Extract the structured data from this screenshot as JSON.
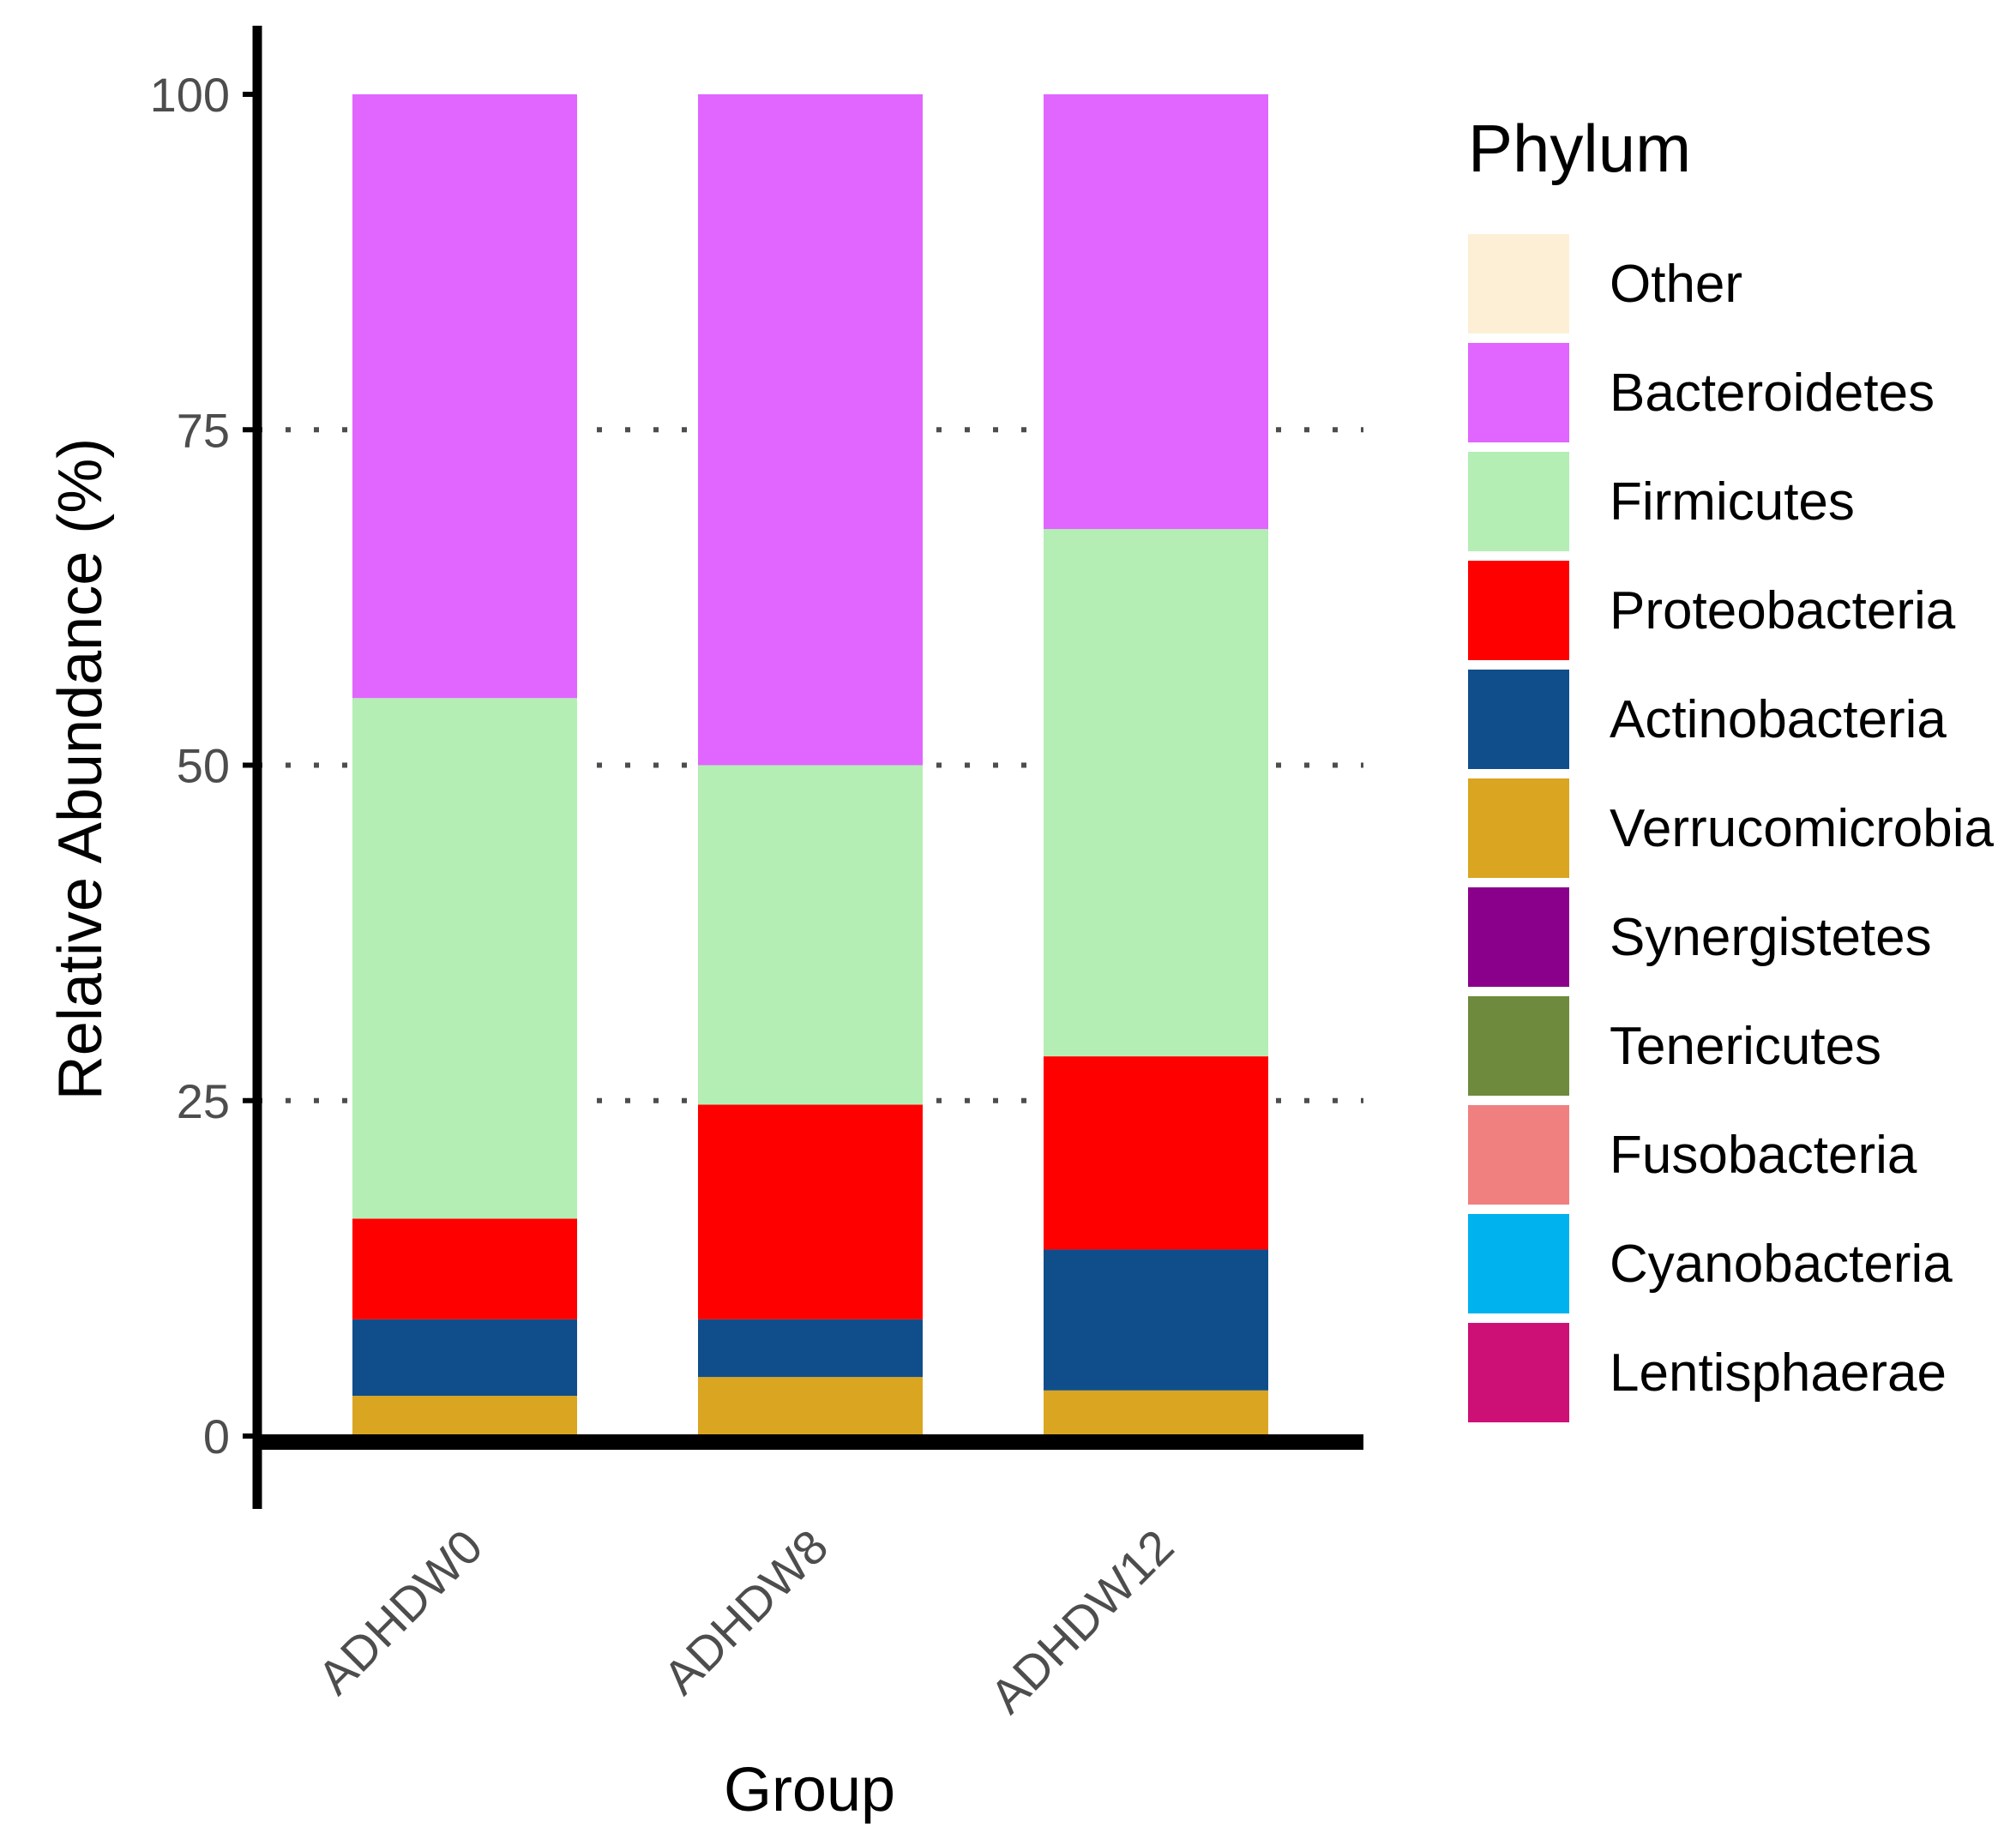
{
  "chart_data": {
    "type": "bar",
    "stacked": true,
    "title": "",
    "xlabel": "Group",
    "ylabel": "Relative Abundance (%)",
    "ylim": [
      0,
      100
    ],
    "yticks": [
      0,
      25,
      50,
      75,
      100
    ],
    "grid": "dotted horizontal at 25, 50, 75",
    "categories": [
      "ADHDW0",
      "ADHDW8",
      "ADHDW12"
    ],
    "legend": {
      "title": "Phylum",
      "position": "right"
    },
    "series": [
      {
        "name": "Other",
        "color": "#FDEFD6",
        "values": [
          0,
          0,
          0
        ]
      },
      {
        "name": "Bacteroidetes",
        "color": "#E066FF",
        "values": [
          45.0,
          50.0,
          32.4
        ]
      },
      {
        "name": "Firmicutes",
        "color": "#B4EEB4",
        "values": [
          38.8,
          25.3,
          39.3
        ]
      },
      {
        "name": "Proteobacteria",
        "color": "#FF0000",
        "values": [
          7.5,
          16.0,
          14.4
        ]
      },
      {
        "name": "Actinobacteria",
        "color": "#104E8B",
        "values": [
          5.7,
          4.3,
          10.5
        ]
      },
      {
        "name": "Verrucomicrobia",
        "color": "#DAA520",
        "values": [
          3.0,
          4.4,
          3.4
        ]
      },
      {
        "name": "Synergistetes",
        "color": "#8B008B",
        "values": [
          0,
          0,
          0
        ]
      },
      {
        "name": "Tenericutes",
        "color": "#6E8B3D",
        "values": [
          0,
          0,
          0
        ]
      },
      {
        "name": "Fusobacteria",
        "color": "#F08080",
        "values": [
          0,
          0,
          0
        ]
      },
      {
        "name": "Cyanobacteria",
        "color": "#00B2EE",
        "values": [
          0,
          0,
          0
        ]
      },
      {
        "name": "Lentisphaerae",
        "color": "#CD1076",
        "values": [
          0,
          0,
          0
        ]
      }
    ]
  }
}
